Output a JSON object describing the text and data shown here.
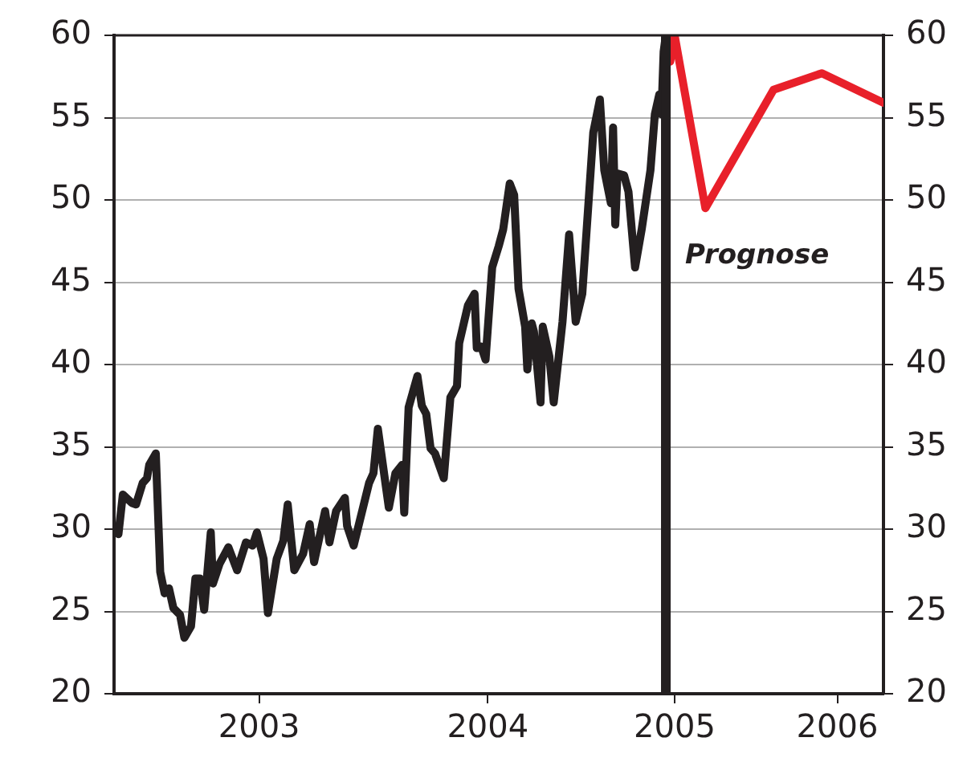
{
  "chart_data": {
    "type": "line",
    "xlim": [
      2002.5,
      2006.0
    ],
    "xticks": [
      {
        "value": 2003.16,
        "label": "2003"
      },
      {
        "value": 2004.2,
        "label": "2004"
      },
      {
        "value": 2005.05,
        "label": "2005"
      },
      {
        "value": 2005.79,
        "label": "2006"
      }
    ],
    "ylim": [
      20,
      60
    ],
    "yticks": [
      20,
      25,
      30,
      35,
      40,
      45,
      50,
      55,
      60
    ],
    "y2lim": [
      20,
      60
    ],
    "y2ticks": [
      20,
      25,
      30,
      35,
      40,
      45,
      50,
      55,
      60
    ],
    "grid": "y",
    "legend": false,
    "marker": "none",
    "line_style": "solid",
    "ref_lines": [
      {
        "axis": "x",
        "value": 2005.01,
        "label": "Prognose",
        "color": "#231f20"
      }
    ],
    "series": [
      {
        "color": "#231f20",
        "x": [
          2002.5,
          2002.52,
          2002.54,
          2002.58,
          2002.6,
          2002.63,
          2002.65,
          2002.66,
          2002.69,
          2002.71,
          2002.73,
          2002.75,
          2002.77,
          2002.8,
          2002.82,
          2002.85,
          2002.87,
          2002.89,
          2002.91,
          2002.94,
          2002.95,
          2002.98,
          2003.02,
          2003.06,
          2003.1,
          2003.13,
          2003.15,
          2003.18,
          2003.2,
          2003.24,
          2003.27,
          2003.29,
          2003.32,
          2003.36,
          2003.39,
          2003.41,
          2003.46,
          2003.48,
          2003.51,
          2003.55,
          2003.56,
          2003.59,
          2003.66,
          2003.68,
          2003.7,
          2003.75,
          2003.78,
          2003.81,
          2003.82,
          2003.84,
          2003.88,
          2003.9,
          2003.92,
          2003.94,
          2003.96,
          2004.0,
          2004.03,
          2004.06,
          2004.07,
          2004.11,
          2004.14,
          2004.15,
          2004.17,
          2004.19,
          2004.22,
          2004.25,
          2004.27,
          2004.3,
          2004.32,
          2004.34,
          2004.37,
          2004.38,
          2004.4,
          2004.41,
          2004.44,
          2004.45,
          2004.48,
          2004.5,
          2004.54,
          2004.57,
          2004.6,
          2004.63,
          2004.68,
          2004.71,
          2004.73,
          2004.76,
          2004.77,
          2004.78,
          2004.79,
          2004.82,
          2004.84,
          2004.87,
          2004.9,
          2004.94,
          2004.96,
          2004.98,
          2004.99,
          2005.0,
          2005.01
        ],
        "values": [
          30.0,
          29.7,
          32.1,
          31.6,
          31.5,
          32.8,
          33.1,
          33.9,
          34.6,
          27.4,
          26.1,
          26.4,
          25.2,
          24.8,
          23.4,
          24.1,
          27.0,
          27.0,
          25.1,
          29.8,
          26.7,
          27.9,
          28.9,
          27.5,
          29.2,
          29.0,
          29.8,
          28.2,
          24.9,
          28.2,
          29.3,
          31.5,
          27.5,
          28.5,
          30.3,
          28.0,
          31.1,
          29.2,
          31.1,
          31.9,
          30.2,
          29.0,
          32.8,
          33.4,
          36.1,
          31.3,
          33.4,
          33.9,
          31.0,
          37.4,
          39.3,
          37.5,
          37.0,
          34.9,
          34.6,
          33.1,
          38.0,
          38.7,
          41.3,
          43.6,
          44.3,
          41.0,
          41.1,
          40.3,
          45.9,
          47.2,
          48.2,
          51.0,
          50.3,
          44.6,
          42.3,
          39.7,
          42.5,
          42.0,
          37.7,
          42.3,
          40.5,
          37.7,
          42.6,
          47.9,
          42.6,
          44.3,
          54.1,
          56.1,
          51.8,
          49.8,
          54.4,
          48.5,
          51.6,
          51.5,
          50.5,
          45.9,
          48.2,
          51.8,
          55.2,
          56.4,
          55.2,
          59.0,
          60.0
        ]
      },
      {
        "color": "#e8202a",
        "x": [
          2005.03,
          2005.05,
          2005.19,
          2005.5,
          2005.72,
          2006.0
        ],
        "values": [
          58.4,
          60.0,
          49.5,
          56.7,
          57.7,
          55.9
        ]
      }
    ]
  }
}
